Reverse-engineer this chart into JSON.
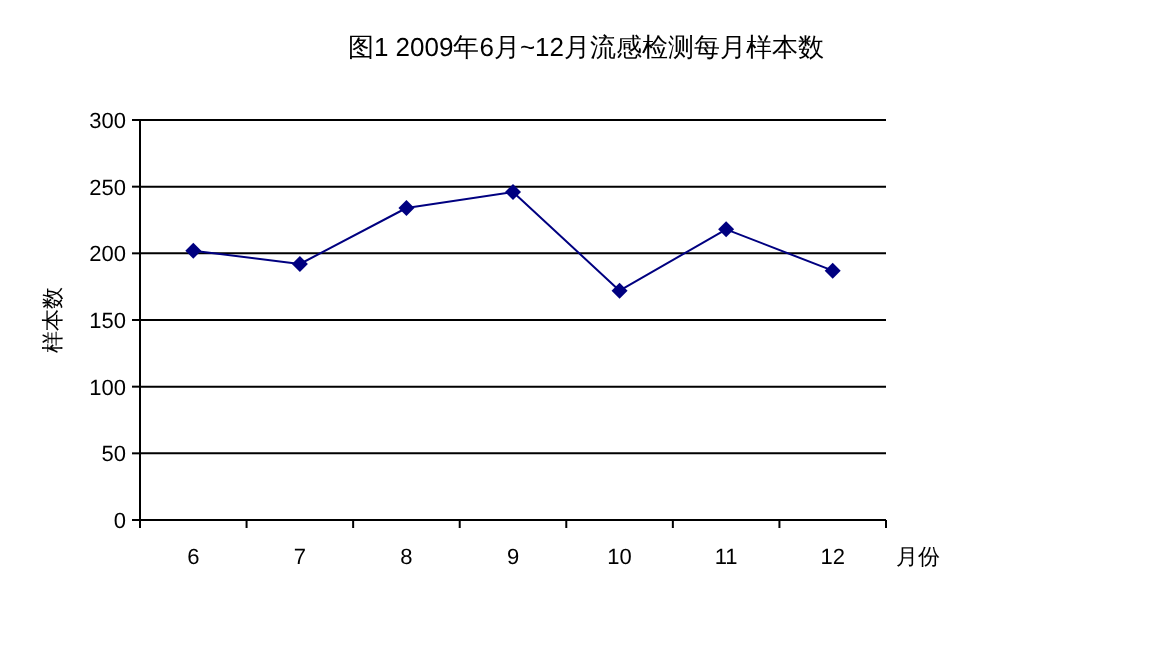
{
  "chart_data": {
    "type": "line",
    "title": "图1 2009年6月~12月流感检测每月样本数",
    "xlabel": "月份",
    "ylabel": "样本数",
    "categories": [
      "6",
      "7",
      "8",
      "9",
      "10",
      "11",
      "12"
    ],
    "series": [
      {
        "color": "#000080",
        "values": [
          202,
          192,
          234,
          246,
          172,
          218,
          187
        ]
      }
    ],
    "ylim": [
      0,
      300
    ],
    "yticks": [
      0,
      50,
      100,
      150,
      200,
      250,
      300
    ],
    "grid": "y",
    "marker": "diamond",
    "line_style": "solid"
  }
}
